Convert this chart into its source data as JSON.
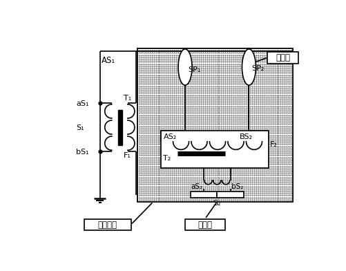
{
  "figure_width": 5.02,
  "figure_height": 3.92,
  "dpi": 100,
  "bg_color": "#ffffff",
  "line_color": "#000000",
  "label_AS1": "AS₁",
  "label_SP1": "SP₁",
  "label_SP2": "SP₂",
  "label_insulating_oil": "绦缘油",
  "label_aS1": "aS₁",
  "label_S1": "S₁",
  "label_bS1": "bS₁",
  "label_T1": "T₁",
  "label_F1": "F₁",
  "label_AS2": "AS₂",
  "label_BS2": "BS₂",
  "label_F2": "F₂",
  "label_T2": "T₂",
  "label_aS2": "aS₂",
  "label_S2": "S₂",
  "label_bS2": "bS₂",
  "label_test_box": "试验油算",
  "label_heater": "加热器"
}
